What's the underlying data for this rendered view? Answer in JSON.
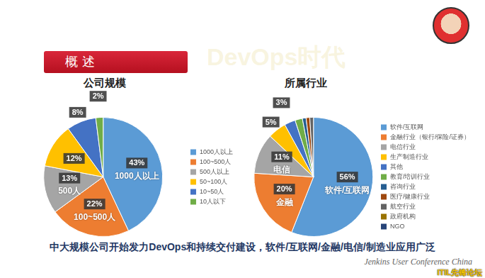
{
  "title": "概述",
  "caption": "中大规模公司开始发力DevOps和持续交付建设，软件/互联网/金融/电信/制造业应用广泛",
  "footer": "Jenkins User Conference China",
  "watermark": "DevOps时代",
  "source": "ITIL先锋论坛",
  "chart_data": [
    {
      "type": "pie",
      "title": "公司规模",
      "categories": [
        "1000人以上",
        "100~500人",
        "500人以上",
        "50~100人",
        "10~50人",
        "10人以下"
      ],
      "values": [
        43,
        22,
        13,
        12,
        8,
        2
      ],
      "value_labels": [
        "43%",
        "22%",
        "13%",
        "12%",
        "8%",
        "2%"
      ],
      "slice_labels": [
        "1000人以上",
        "100~500人",
        "500人",
        null,
        null,
        null
      ],
      "colors": [
        "#5b9bd5",
        "#ed7d31",
        "#a5a5a5",
        "#ffc000",
        "#4472c4",
        "#70ad47"
      ],
      "data_labels": true,
      "legend": "right"
    },
    {
      "type": "pie",
      "title": "所属行业",
      "categories": [
        "软件/互联网",
        "金融行业（银行/保险/证券）",
        "电信行业",
        "生产制造行业",
        "其他",
        "教育/培训行业",
        "咨询行业",
        "医疗/健康行业",
        "航空行业",
        "政府机构",
        "NGO"
      ],
      "values": [
        56,
        20,
        11,
        5,
        3,
        2,
        1,
        1,
        1,
        0,
        0
      ],
      "value_labels": [
        "56%",
        "20%",
        "11%",
        "5%",
        "3%",
        null,
        null,
        null,
        null,
        null,
        null
      ],
      "slice_labels": [
        "软件/互联网",
        "金融",
        "电信",
        null,
        null,
        null,
        null,
        null,
        null,
        null,
        null
      ],
      "colors": [
        "#5b9bd5",
        "#ed7d31",
        "#a5a5a5",
        "#ffc000",
        "#4472c4",
        "#70ad47",
        "#255e91",
        "#9e480e",
        "#636363",
        "#997300",
        "#264478"
      ],
      "data_labels": true,
      "legend": "right"
    }
  ]
}
